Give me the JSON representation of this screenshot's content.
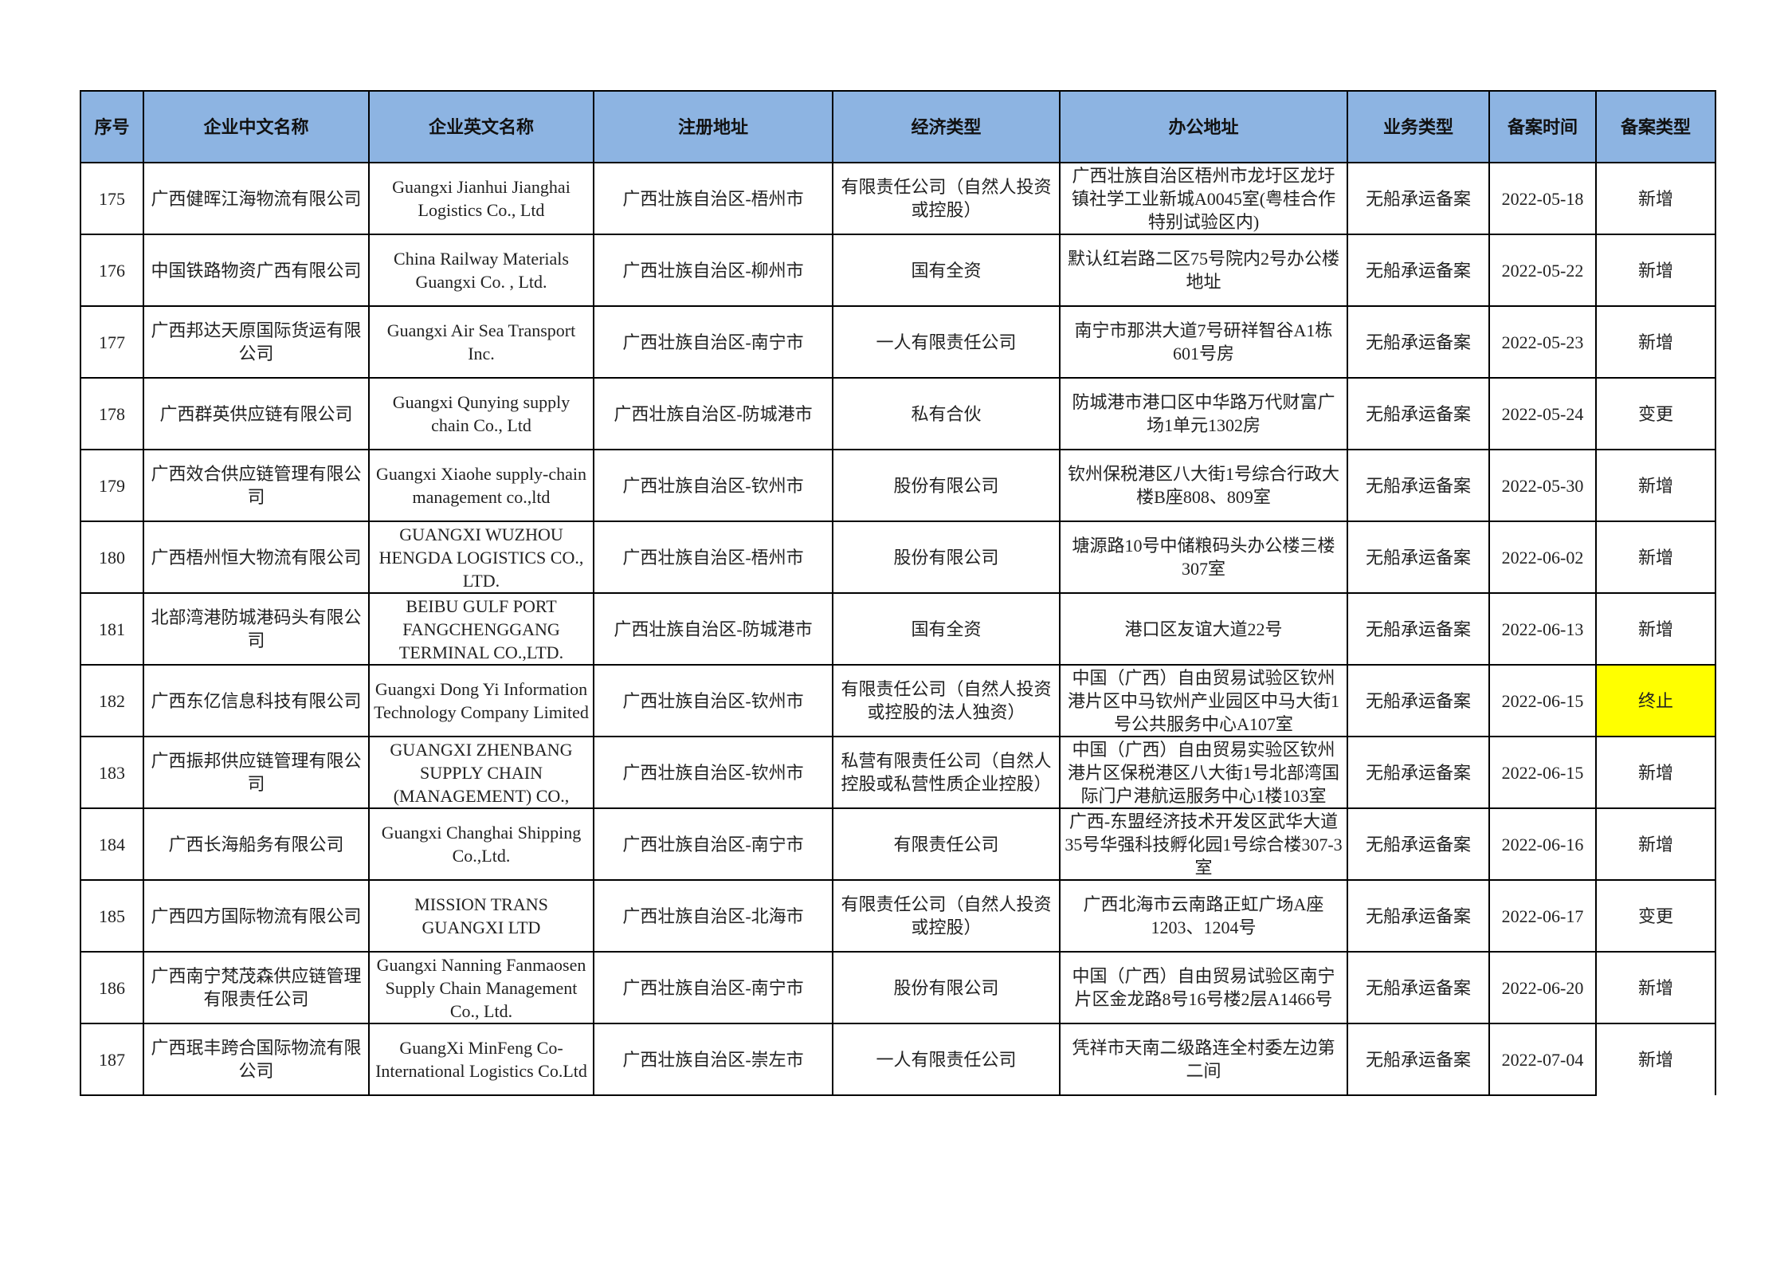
{
  "table": {
    "headers": [
      "序号",
      "企业中文名称",
      "企业英文名称",
      "注册地址",
      "经济类型",
      "办公地址",
      "业务类型",
      "备案时间",
      "备案类型"
    ],
    "highlight_color": "#ffff00",
    "header_color": "#8db4e2",
    "rows": [
      [
        "175",
        "广西健晖江海物流有限公司",
        "Guangxi Jianhui Jianghai Logistics Co., Ltd",
        "广西壮族自治区-梧州市",
        "有限责任公司（自然人投资或控股）",
        "广西壮族自治区梧州市龙圩区龙圩镇社学工业新城A0045室(粤桂合作特别试验区内)",
        "无船承运备案",
        "2022-05-18",
        "新增"
      ],
      [
        "176",
        "中国铁路物资广西有限公司",
        "China Railway Materials Guangxi Co. , Ltd.",
        "广西壮族自治区-柳州市",
        "国有全资",
        "默认红岩路二区75号院内2号办公楼地址",
        "无船承运备案",
        "2022-05-22",
        "新增"
      ],
      [
        "177",
        "广西邦达天原国际货运有限公司",
        "Guangxi Air Sea Transport Inc.",
        "广西壮族自治区-南宁市",
        "一人有限责任公司",
        "南宁市那洪大道7号研祥智谷A1栋601号房",
        "无船承运备案",
        "2022-05-23",
        "新增"
      ],
      [
        "178",
        "广西群英供应链有限公司",
        "Guangxi Qunying supply chain Co., Ltd",
        "广西壮族自治区-防城港市",
        "私有合伙",
        "防城港市港口区中华路万代财富广场1单元1302房",
        "无船承运备案",
        "2022-05-24",
        "变更"
      ],
      [
        "179",
        "广西效合供应链管理有限公司",
        "Guangxi Xiaohe supply-chain management co.,ltd",
        "广西壮族自治区-钦州市",
        "股份有限公司",
        "钦州保税港区八大街1号综合行政大楼B座808、809室",
        "无船承运备案",
        "2022-05-30",
        "新增"
      ],
      [
        "180",
        "广西梧州恒大物流有限公司",
        "GUANGXI WUZHOU HENGDA LOGISTICS CO., LTD.",
        "广西壮族自治区-梧州市",
        "股份有限公司",
        "塘源路10号中储粮码头办公楼三楼307室",
        "无船承运备案",
        "2022-06-02",
        "新增"
      ],
      [
        "181",
        "北部湾港防城港码头有限公司",
        "BEIBU GULF PORT FANGCHENGGANG TERMINAL CO.,LTD.",
        "广西壮族自治区-防城港市",
        "国有全资",
        "港口区友谊大道22号",
        "无船承运备案",
        "2022-06-13",
        "新增"
      ],
      [
        "182",
        "广西东亿信息科技有限公司",
        "Guangxi Dong Yi Information Technology Company Limited",
        "广西壮族自治区-钦州市",
        "有限责任公司（自然人投资或控股的法人独资）",
        "中国（广西）自由贸易试验区钦州港片区中马钦州产业园区中马大街1号公共服务中心A107室",
        "无船承运备案",
        "2022-06-15",
        "终止"
      ],
      [
        "183",
        "广西振邦供应链管理有限公司",
        "GUANGXI ZHENBANG SUPPLY CHAIN (MANAGEMENT) CO.,",
        "广西壮族自治区-钦州市",
        "私营有限责任公司（自然人控股或私营性质企业控股）",
        "中国（广西）自由贸易实验区钦州港片区保税港区八大街1号北部湾国际门户港航运服务中心1楼103室",
        "无船承运备案",
        "2022-06-15",
        "新增"
      ],
      [
        "184",
        "广西长海船务有限公司",
        "Guangxi Changhai Shipping Co.,Ltd.",
        "广西壮族自治区-南宁市",
        "有限责任公司",
        "广西-东盟经济技术开发区武华大道35号华强科技孵化园1号综合楼307-3室",
        "无船承运备案",
        "2022-06-16",
        "新增"
      ],
      [
        "185",
        "广西四方国际物流有限公司",
        "MISSION TRANS GUANGXI LTD",
        "广西壮族自治区-北海市",
        "有限责任公司（自然人投资或控股）",
        "广西北海市云南路正虹广场A座1203、1204号",
        "无船承运备案",
        "2022-06-17",
        "变更"
      ],
      [
        "186",
        "广西南宁梵茂森供应链管理有限责任公司",
        "Guangxi Nanning Fanmaosen Supply Chain Management Co., Ltd.",
        "广西壮族自治区-南宁市",
        "股份有限公司",
        "中国（广西）自由贸易试验区南宁片区金龙路8号16号楼2层A1466号",
        "无船承运备案",
        "2022-06-20",
        "新增"
      ],
      [
        "187",
        "广西珉丰跨合国际物流有限公司",
        "GuangXi MinFeng Co-International Logistics Co.Ltd",
        "广西壮族自治区-崇左市",
        "一人有限责任公司",
        "凭祥市天南二级路连全村委左边第二间",
        "无船承运备案",
        "2022-07-04",
        "新增"
      ]
    ],
    "highlighted_rows": [
      7
    ]
  }
}
